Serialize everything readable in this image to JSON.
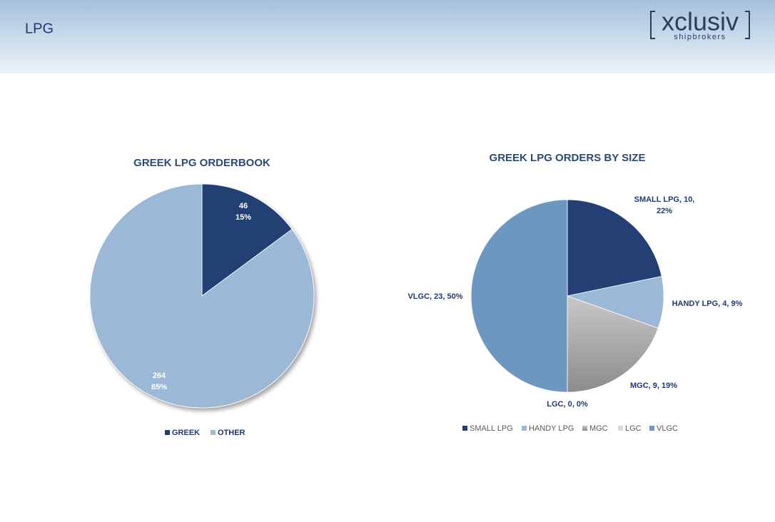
{
  "header": {
    "title": "LPG",
    "logo": "xclusiv",
    "logo_sub": "shipbrokers"
  },
  "chart_data": [
    {
      "type": "pie",
      "title": "GREEK LPG ORDERBOOK",
      "categories": [
        "GREEK",
        "OTHER"
      ],
      "values": [
        46,
        264
      ],
      "value_labels": [
        [
          "46",
          "15%"
        ],
        [
          "264",
          "85%"
        ]
      ],
      "colors": [
        "#243f73",
        "#9bb8d6"
      ],
      "legend": "bottom"
    },
    {
      "type": "pie",
      "title": "GREEK LPG ORDERS BY SIZE",
      "categories": [
        "SMALL LPG",
        "HANDY LPG",
        "MGC",
        "LGC",
        "VLGC"
      ],
      "values": [
        10,
        4,
        9,
        0,
        23
      ],
      "value_labels": [
        [
          "SMALL LPG, 10,",
          "22%"
        ],
        [
          "HANDY LPG, 4, 9%"
        ],
        [
          "MGC, 9, 19%"
        ],
        [
          "LGC, 0, 0%"
        ],
        [
          "VLGC, 23, 50%"
        ]
      ],
      "colors": [
        "#243f73",
        "#9bb8d6",
        "#a6a6a6",
        "#d9d9d9",
        "#6b97c0"
      ],
      "legend": "bottom"
    }
  ]
}
